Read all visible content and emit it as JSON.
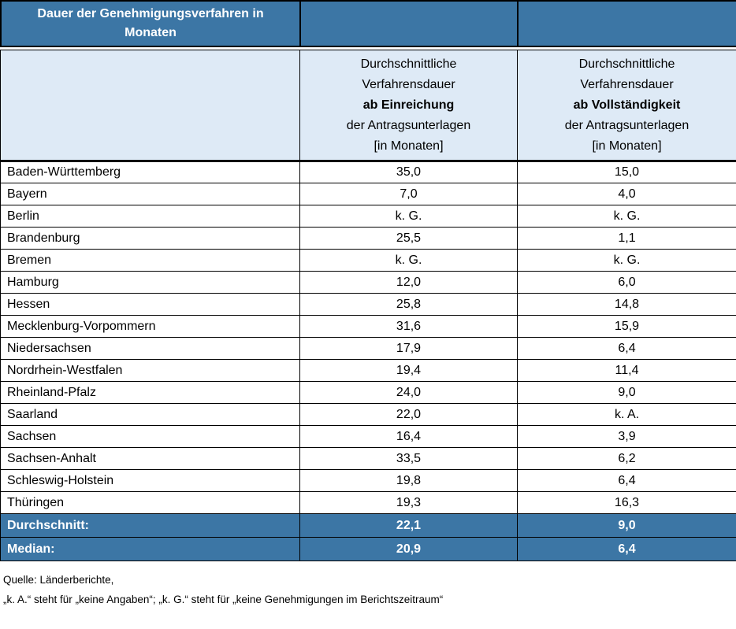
{
  "title": "Dauer der Genehmigungsverfahren in Monaten",
  "columns": {
    "submission": {
      "l1": "Durchschnittliche",
      "l2": "Verfahrensdauer",
      "bold": "ab Einreichung",
      "l4": "der Antragsunterlagen",
      "l5": "[in Monaten]"
    },
    "completeness": {
      "l1": "Durchschnittliche",
      "l2": "Verfahrensdauer",
      "bold": "ab Vollständigkeit",
      "l4": "der Antragsunterlagen",
      "l5": "[in Monaten]"
    }
  },
  "rows": [
    {
      "state": "Baden-Württemberg",
      "submission": "35,0",
      "completeness": "15,0"
    },
    {
      "state": "Bayern",
      "submission": "7,0",
      "completeness": "4,0"
    },
    {
      "state": "Berlin",
      "submission": "k. G.",
      "completeness": "k. G."
    },
    {
      "state": "Brandenburg",
      "submission": "25,5",
      "completeness": "1,1"
    },
    {
      "state": "Bremen",
      "submission": "k. G.",
      "completeness": "k. G."
    },
    {
      "state": "Hamburg",
      "submission": "12,0",
      "completeness": "6,0"
    },
    {
      "state": "Hessen",
      "submission": "25,8",
      "completeness": "14,8"
    },
    {
      "state": "Mecklenburg-Vorpommern",
      "submission": "31,6",
      "completeness": "15,9"
    },
    {
      "state": "Niedersachsen",
      "submission": "17,9",
      "completeness": "6,4"
    },
    {
      "state": "Nordrhein-Westfalen",
      "submission": "19,4",
      "completeness": "11,4"
    },
    {
      "state": "Rheinland-Pfalz",
      "submission": "24,0",
      "completeness": "9,0"
    },
    {
      "state": "Saarland",
      "submission": "22,0",
      "completeness": "k. A."
    },
    {
      "state": "Sachsen",
      "submission": "16,4",
      "completeness": "3,9"
    },
    {
      "state": "Sachsen-Anhalt",
      "submission": "33,5",
      "completeness": "6,2"
    },
    {
      "state": "Schleswig-Holstein",
      "submission": "19,8",
      "completeness": "6,4"
    },
    {
      "state": "Thüringen",
      "submission": "19,3",
      "completeness": "16,3"
    }
  ],
  "summary": [
    {
      "label": "Durchschnitt:",
      "submission": "22,1",
      "completeness": "9,0"
    },
    {
      "label": "Median:",
      "submission": "20,9",
      "completeness": "6,4"
    }
  ],
  "footer": {
    "source": "Quelle: Länderberichte,",
    "legend": "„k. A.“ steht für „keine Angaben“; „k. G.“ steht für „keine Genehmigungen im Berichtszeitraum“"
  },
  "colors": {
    "header_blue": "#3C76A5",
    "light_blue": "#DEEAF6",
    "border": "#000000",
    "header_text": "#FFFFFF"
  }
}
